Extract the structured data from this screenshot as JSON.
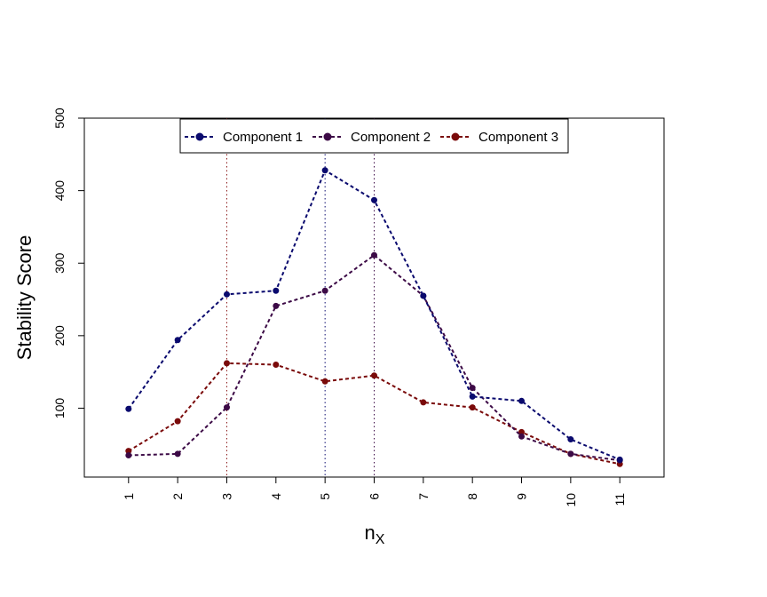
{
  "chart_data": {
    "type": "line",
    "title": "",
    "xlabel": "n",
    "xlabel_subscript": "X",
    "ylabel": "Stability Score",
    "categories": [
      "1",
      "2",
      "3",
      "4",
      "5",
      "6",
      "7",
      "8",
      "9",
      "10",
      "11"
    ],
    "x": [
      1,
      2,
      3,
      4,
      5,
      6,
      7,
      8,
      9,
      10,
      11
    ],
    "xlim": [
      0.1,
      11.9
    ],
    "ylim": [
      5,
      500
    ],
    "yticks": [
      100,
      200,
      300,
      400,
      500
    ],
    "grid": false,
    "legend_position": "top",
    "series": [
      {
        "name": "Component 1",
        "color": "#0a0a6e",
        "values": [
          99,
          194,
          257,
          262,
          428,
          387,
          255,
          116,
          110,
          57,
          29
        ]
      },
      {
        "name": "Component 2",
        "color": "#3c0a46",
        "values": [
          35,
          37,
          101,
          241,
          262,
          311,
          255,
          128,
          61,
          37,
          28
        ]
      },
      {
        "name": "Component 3",
        "color": "#7a0a0a",
        "values": [
          41,
          82,
          162,
          160,
          137,
          145,
          108,
          101,
          67,
          37,
          23
        ]
      }
    ],
    "vlines": [
      {
        "x": 3,
        "color": "#8b1a1a"
      },
      {
        "x": 5,
        "color": "#0a0a6e"
      },
      {
        "x": 6,
        "color": "#3c0a46"
      }
    ]
  }
}
